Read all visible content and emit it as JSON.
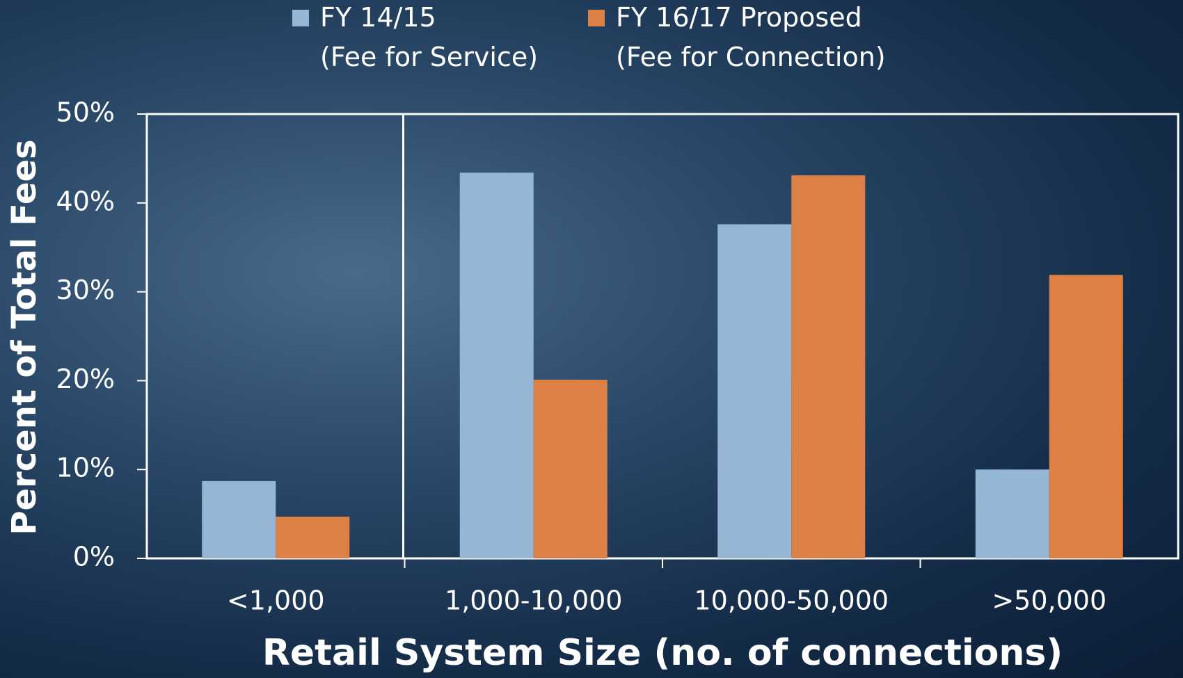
{
  "chart_data": {
    "type": "bar",
    "xlabel": "Retail System Size (no. of connections)",
    "ylabel": "Percent of Total Fees",
    "categories": [
      "<1,000",
      "1,000-10,000",
      "10,000-50,000",
      ">50,000"
    ],
    "series": [
      {
        "name": "FY 14/15\n(Fee for Service)",
        "color": "#95b6d4",
        "values": [
          8.7,
          43.4,
          37.6,
          10.0
        ]
      },
      {
        "name": "FY 16/17 Proposed\n(Fee for Connection)",
        "color": "#dd8046",
        "values": [
          4.7,
          20.1,
          43.1,
          31.9
        ]
      }
    ],
    "ylim": [
      0,
      50
    ],
    "yticks": [
      {
        "value": 0,
        "label": "0%"
      },
      {
        "value": 10,
        "label": "10%"
      },
      {
        "value": 20,
        "label": "20%"
      },
      {
        "value": 30,
        "label": "30%"
      },
      {
        "value": 40,
        "label": "40%"
      },
      {
        "value": 50,
        "label": "50%"
      }
    ],
    "legend": "top"
  }
}
